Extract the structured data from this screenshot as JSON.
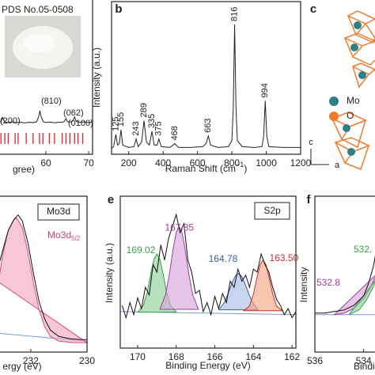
{
  "panel_labels": [
    "b",
    "c",
    "e",
    "f"
  ],
  "chart_data": [
    {
      "type": "line",
      "title": "PDS No.05-0508",
      "xlabel": "gree)",
      "xlim": [
        48.9,
        70.9
      ],
      "ylim": [
        0,
        100
      ],
      "xticks": [
        60,
        70
      ],
      "x": [
        48.9,
        49.5,
        49.9,
        50.3,
        51,
        52,
        53,
        54,
        55,
        56,
        57,
        57.8,
        58.3,
        58.6,
        58.9,
        59.4,
        60,
        61,
        62,
        63,
        64,
        64.4,
        64.7,
        65,
        65.6,
        66.3,
        66.7,
        67.1,
        68,
        69,
        70,
        70.9
      ],
      "series": [
        {
          "color": "#222222",
          "values": [
            20.5,
            21,
            23.5,
            21,
            20.3,
            20.8,
            20.2,
            20.6,
            20.1,
            20.5,
            20.3,
            20.8,
            24,
            28,
            24,
            20.9,
            20.4,
            20.7,
            20.2,
            20.5,
            20.6,
            21.5,
            23,
            21,
            20.6,
            21.3,
            24,
            21,
            20.5,
            20.8,
            20.3,
            20.6
          ]
        }
      ],
      "reference_x": [
        49.5,
        50.4,
        51.2,
        52.8,
        53.5,
        55.4,
        57.0,
        58.5,
        59.3,
        60.8,
        62.0,
        63.8,
        64.7,
        65.6,
        66.7,
        67.5,
        68.6
      ],
      "reference_color": "#e0242a",
      "annotations": [
        "(200)",
        "(810)",
        "(062)",
        "(0100)"
      ]
    },
    {
      "type": "line",
      "xlabel": "Raman Shift (cm",
      "xlabel_sup": "−1",
      "xlabel_end": ")",
      "ylabel": "Intensity (a.u.)",
      "xlim": [
        100,
        1200
      ],
      "ylim": [
        0,
        100
      ],
      "xticks": [
        200,
        400,
        600,
        800,
        1000,
        1200
      ],
      "x": [
        100,
        112,
        125,
        135,
        145,
        155,
        165,
        200,
        230,
        243,
        255,
        275,
        289,
        303,
        320,
        335,
        348,
        365,
        375,
        390,
        440,
        468,
        490,
        560,
        630,
        650,
        663,
        676,
        720,
        780,
        800,
        808,
        816,
        824,
        832,
        860,
        930,
        975,
        985,
        994,
        1003,
        1015,
        1100,
        1200
      ],
      "series": [
        {
          "color": "#222222",
          "values": [
            4,
            5,
            13,
            6,
            7,
            16,
            6,
            4.5,
            5,
            10,
            5,
            8,
            22,
            8,
            6,
            15,
            6,
            6,
            10,
            5,
            4.5,
            7,
            4.5,
            4.5,
            5,
            7,
            12,
            6,
            4.5,
            5,
            9,
            30,
            85,
            30,
            9,
            5,
            4.5,
            5,
            12,
            35,
            12,
            5,
            4.5,
            4.5
          ]
        }
      ],
      "peak_labels": [
        125,
        155,
        243,
        289,
        335,
        375,
        468,
        663,
        816,
        994
      ]
    },
    {
      "type": "line",
      "xlabel": "ergy (eV)",
      "box_label": "Mo3d",
      "component_label": "Mo3d",
      "component_label_sub": "5/2",
      "component_label_color": "#c0407a",
      "xlim": [
        233.15,
        230
      ],
      "ylim": [
        0,
        100
      ],
      "xticks": [
        232,
        230
      ],
      "series": [
        {
          "color": "#7a9ad0",
          "x": [
            233.15,
            230
          ],
          "values": [
            12,
            7
          ]
        },
        {
          "color": "#d05080",
          "fill": "#f2a9c4",
          "x": [
            233.15,
            233.0,
            232.8,
            232.6,
            232.5,
            232.3,
            232.1,
            231.9,
            231.7,
            231.5,
            231.3,
            231.0,
            230.5,
            230
          ],
          "values": [
            45,
            62,
            78,
            85,
            86,
            80,
            64,
            44,
            27,
            16,
            10,
            7,
            6,
            6
          ]
        },
        {
          "color": "#111111",
          "x": [
            233.15,
            233.0,
            232.8,
            232.6,
            232.45,
            232.3,
            232.1,
            231.9,
            231.7,
            231.5,
            231.3,
            231.0,
            230.6,
            230.2,
            230
          ],
          "values": [
            55,
            65,
            78,
            85,
            88,
            84,
            70,
            50,
            32,
            21,
            14,
            10,
            8.5,
            8,
            8
          ]
        }
      ]
    },
    {
      "type": "line",
      "xlabel": "Binding Energy (eV)",
      "ylabel": "Intensity (a.u.)",
      "box_label": "S2p",
      "xlim": [
        170.9,
        161.8
      ],
      "ylim": [
        0,
        100
      ],
      "xticks": [
        170,
        168,
        166,
        164,
        162
      ],
      "series": [
        {
          "color": "#7a9ad0",
          "x": [
            170.9,
            161.8
          ],
          "values": [
            24,
            22
          ]
        },
        {
          "name": "169.02",
          "color": "#3aa04a",
          "fill": "#8fd49a",
          "x": [
            170.0,
            169.7,
            169.5,
            169.3,
            169.15,
            169.0,
            168.85,
            168.7,
            168.5,
            168.3,
            168.0
          ],
          "values": [
            23.7,
            28.3,
            37.0,
            50.0,
            58.6,
            62.0,
            58.6,
            50.0,
            37.0,
            28.3,
            23.7
          ]
        },
        {
          "name": "167.85",
          "color": "#9b3f9e",
          "fill": "#d9a6dc",
          "x": [
            168.85,
            168.55,
            168.35,
            168.15,
            168.0,
            167.85,
            167.7,
            167.55,
            167.35,
            167.15,
            166.85
          ],
          "values": [
            25.5,
            35.3,
            49.1,
            66.0,
            76.1,
            80.0,
            76.1,
            66.0,
            49.1,
            35.3,
            25.5
          ]
        },
        {
          "name": "164.78",
          "color": "#3a5f9a",
          "fill": "#a9bfe6",
          "x": [
            165.78,
            165.48,
            165.28,
            165.08,
            164.93,
            164.78,
            164.63,
            164.48,
            164.28,
            164.08,
            163.78
          ],
          "values": [
            25.2,
            30.7,
            37.0,
            43.8,
            47.6,
            49.0,
            47.6,
            43.8,
            37.0,
            30.7,
            25.2
          ]
        },
        {
          "name": "163.50",
          "color": "#c8322a",
          "fill": "#f2a783",
          "x": [
            164.5,
            164.2,
            164.0,
            163.8,
            163.65,
            163.5,
            163.35,
            163.2,
            163.0,
            162.8,
            162.5
          ],
          "values": [
            24.6,
            27.7,
            35.6,
            47.3,
            54.9,
            58.0,
            54.9,
            47.3,
            35.6,
            27.7,
            24.6
          ]
        },
        {
          "color": "#111111",
          "x": [
            170.8,
            170.6,
            170.4,
            170.2,
            170.0,
            169.8,
            169.6,
            169.4,
            169.2,
            169.0,
            168.8,
            168.6,
            168.4,
            168.2,
            168.0,
            167.8,
            167.6,
            167.4,
            167.2,
            167.0,
            166.8,
            166.6,
            166.4,
            166.2,
            166.0,
            165.8,
            165.6,
            165.4,
            165.2,
            165.0,
            164.8,
            164.6,
            164.4,
            164.2,
            164.0,
            163.8,
            163.6,
            163.4,
            163.2,
            163.0,
            162.8,
            162.6,
            162.4,
            162.2,
            162.0,
            161.8
          ],
          "values": [
            28,
            20,
            30,
            22,
            33,
            26,
            40,
            35,
            55,
            50,
            68,
            58,
            72,
            80,
            88,
            76,
            82,
            58,
            50,
            36,
            38,
            24,
            30,
            22,
            34,
            26,
            36,
            30,
            44,
            40,
            52,
            44,
            48,
            40,
            52,
            50,
            62,
            55,
            50,
            40,
            32,
            28,
            22,
            26,
            20,
            24
          ]
        }
      ]
    },
    {
      "type": "line",
      "xlabel": "Bindi",
      "ylabel": "Intensity",
      "xlim": [
        536,
        533.47
      ],
      "ylim": [
        0,
        100
      ],
      "xticks": [
        536,
        534
      ],
      "series": [
        {
          "color": "#7a9ad0",
          "x": [
            536,
            533.47
          ],
          "values": [
            24,
            24
          ]
        },
        {
          "name": "532.8",
          "color": "#9b3f9e",
          "fill": "#d9a6dc",
          "x": [
            535.2,
            534.8,
            534.4,
            534.0,
            533.7,
            533.47
          ],
          "values": [
            24,
            25,
            28,
            34,
            42,
            50
          ]
        },
        {
          "name": "532.",
          "color": "#3aa04a",
          "fill": "#8fd49a",
          "x": [
            534.6,
            534.2,
            533.9,
            533.6,
            533.47
          ],
          "values": [
            24,
            27,
            33,
            42,
            47
          ]
        },
        {
          "color": "#111111",
          "x": [
            536,
            535.6,
            535.2,
            534.8,
            534.4,
            534.0,
            533.8,
            533.6,
            533.47
          ],
          "values": [
            25,
            25,
            26,
            27,
            30,
            36,
            44,
            55,
            66
          ]
        }
      ]
    }
  ],
  "structure": {
    "legend": [
      {
        "name": "Mo",
        "color": "#2f7f86"
      },
      {
        "name": "O",
        "color": "#ef7b2a"
      }
    ],
    "axes": [
      "c",
      "a"
    ]
  }
}
